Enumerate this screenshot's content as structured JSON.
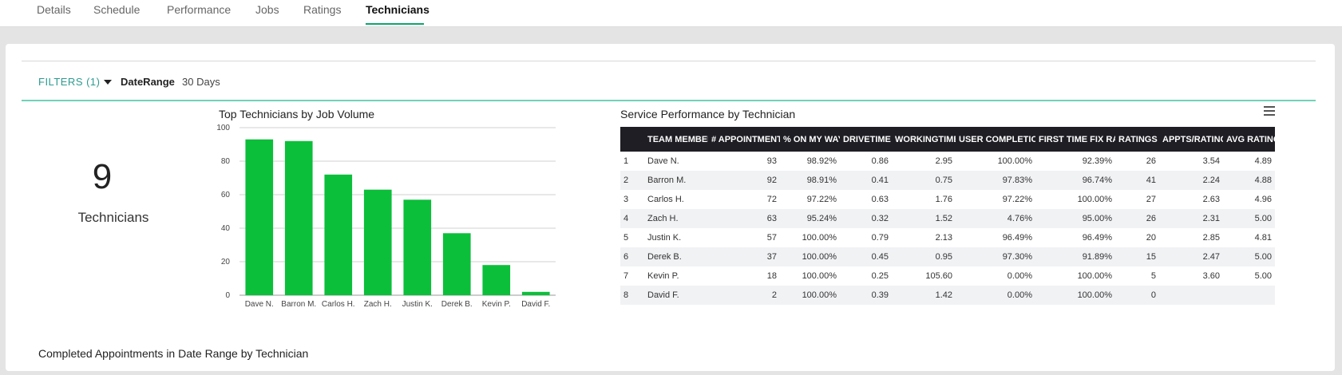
{
  "tabs": [
    {
      "label": "Details",
      "active": false
    },
    {
      "label": "Schedule",
      "active": false
    },
    {
      "label": "Performance",
      "active": false
    },
    {
      "label": "Jobs",
      "active": false
    },
    {
      "label": "Ratings",
      "active": false
    },
    {
      "label": "Technicians",
      "active": true
    }
  ],
  "filters": {
    "label": "FILTERS (1)",
    "date_range_label": "DateRange",
    "date_range_value": "30 Days"
  },
  "kpi": {
    "value": "9",
    "label": "Technicians"
  },
  "chart_title": "Top Technicians by Job Volume",
  "chart_data": {
    "type": "bar",
    "title": "Top Technicians by Job Volume",
    "categories": [
      "Dave N.",
      "Barron M.",
      "Carlos H.",
      "Zach H.",
      "Justin K.",
      "Derek B.",
      "Kevin P.",
      "David F."
    ],
    "values": [
      93,
      92,
      72,
      63,
      57,
      37,
      18,
      2
    ],
    "ylim": [
      0,
      100
    ],
    "yticks": [
      0,
      20,
      40,
      60,
      80,
      100
    ],
    "grid": true,
    "bar_color": "#0bbf3a"
  },
  "table": {
    "title": "Service Performance by Technician",
    "columns": [
      "",
      "TEAM MEMBER",
      "# APPOINTMENTS",
      "% ON MY WAY",
      "DRIVETIME",
      "WORKINGTIME",
      "USER COMPLETION",
      "FIRST TIME FIX RATE",
      "RATINGS",
      "APPTS/RATING",
      "AVG RATING"
    ],
    "rows": [
      [
        "1",
        "Dave N.",
        "93",
        "98.92%",
        "0.86",
        "2.95",
        "100.00%",
        "92.39%",
        "26",
        "3.54",
        "4.89"
      ],
      [
        "2",
        "Barron M.",
        "92",
        "98.91%",
        "0.41",
        "0.75",
        "97.83%",
        "96.74%",
        "41",
        "2.24",
        "4.88"
      ],
      [
        "3",
        "Carlos H.",
        "72",
        "97.22%",
        "0.63",
        "1.76",
        "97.22%",
        "100.00%",
        "27",
        "2.63",
        "4.96"
      ],
      [
        "4",
        "Zach H.",
        "63",
        "95.24%",
        "0.32",
        "1.52",
        "4.76%",
        "95.00%",
        "26",
        "2.31",
        "5.00"
      ],
      [
        "5",
        "Justin K.",
        "57",
        "100.00%",
        "0.79",
        "2.13",
        "96.49%",
        "96.49%",
        "20",
        "2.85",
        "4.81"
      ],
      [
        "6",
        "Derek B.",
        "37",
        "100.00%",
        "0.45",
        "0.95",
        "97.30%",
        "91.89%",
        "15",
        "2.47",
        "5.00"
      ],
      [
        "7",
        "Kevin P.",
        "18",
        "100.00%",
        "0.25",
        "105.60",
        "0.00%",
        "100.00%",
        "5",
        "3.60",
        "5.00"
      ],
      [
        "8",
        "David F.",
        "2",
        "100.00%",
        "0.39",
        "1.42",
        "0.00%",
        "100.00%",
        "0",
        "",
        ""
      ]
    ]
  },
  "section_title": "Completed Appointments in Date Range by Technician",
  "icons": {
    "filter_caret": "caret-down-icon",
    "menu": "hamburger-menu-icon"
  },
  "colors": {
    "accent": "#0ea56c",
    "bar": "#0bbf3a",
    "positive_text": "#1fbd3f",
    "table_header": "#1e1e24"
  }
}
